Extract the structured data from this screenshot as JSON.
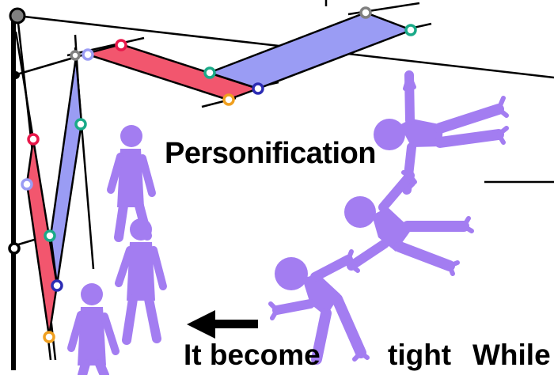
{
  "labels": {
    "personification": "Personification",
    "it_become": "It become",
    "tight": "tight",
    "while": "While"
  },
  "colors": {
    "red_panel": "#f2566e",
    "blue_panel": "#9a9cf4",
    "figure": "#a37df1",
    "joint_red": "#e8184a",
    "joint_lavender": "#9a9cf4",
    "joint_teal": "#1aaa88",
    "joint_navy": "#2c2cb4",
    "joint_orange": "#f0a020",
    "joint_gray": "#808080",
    "joint_black": "#000000",
    "line": "#000000"
  }
}
